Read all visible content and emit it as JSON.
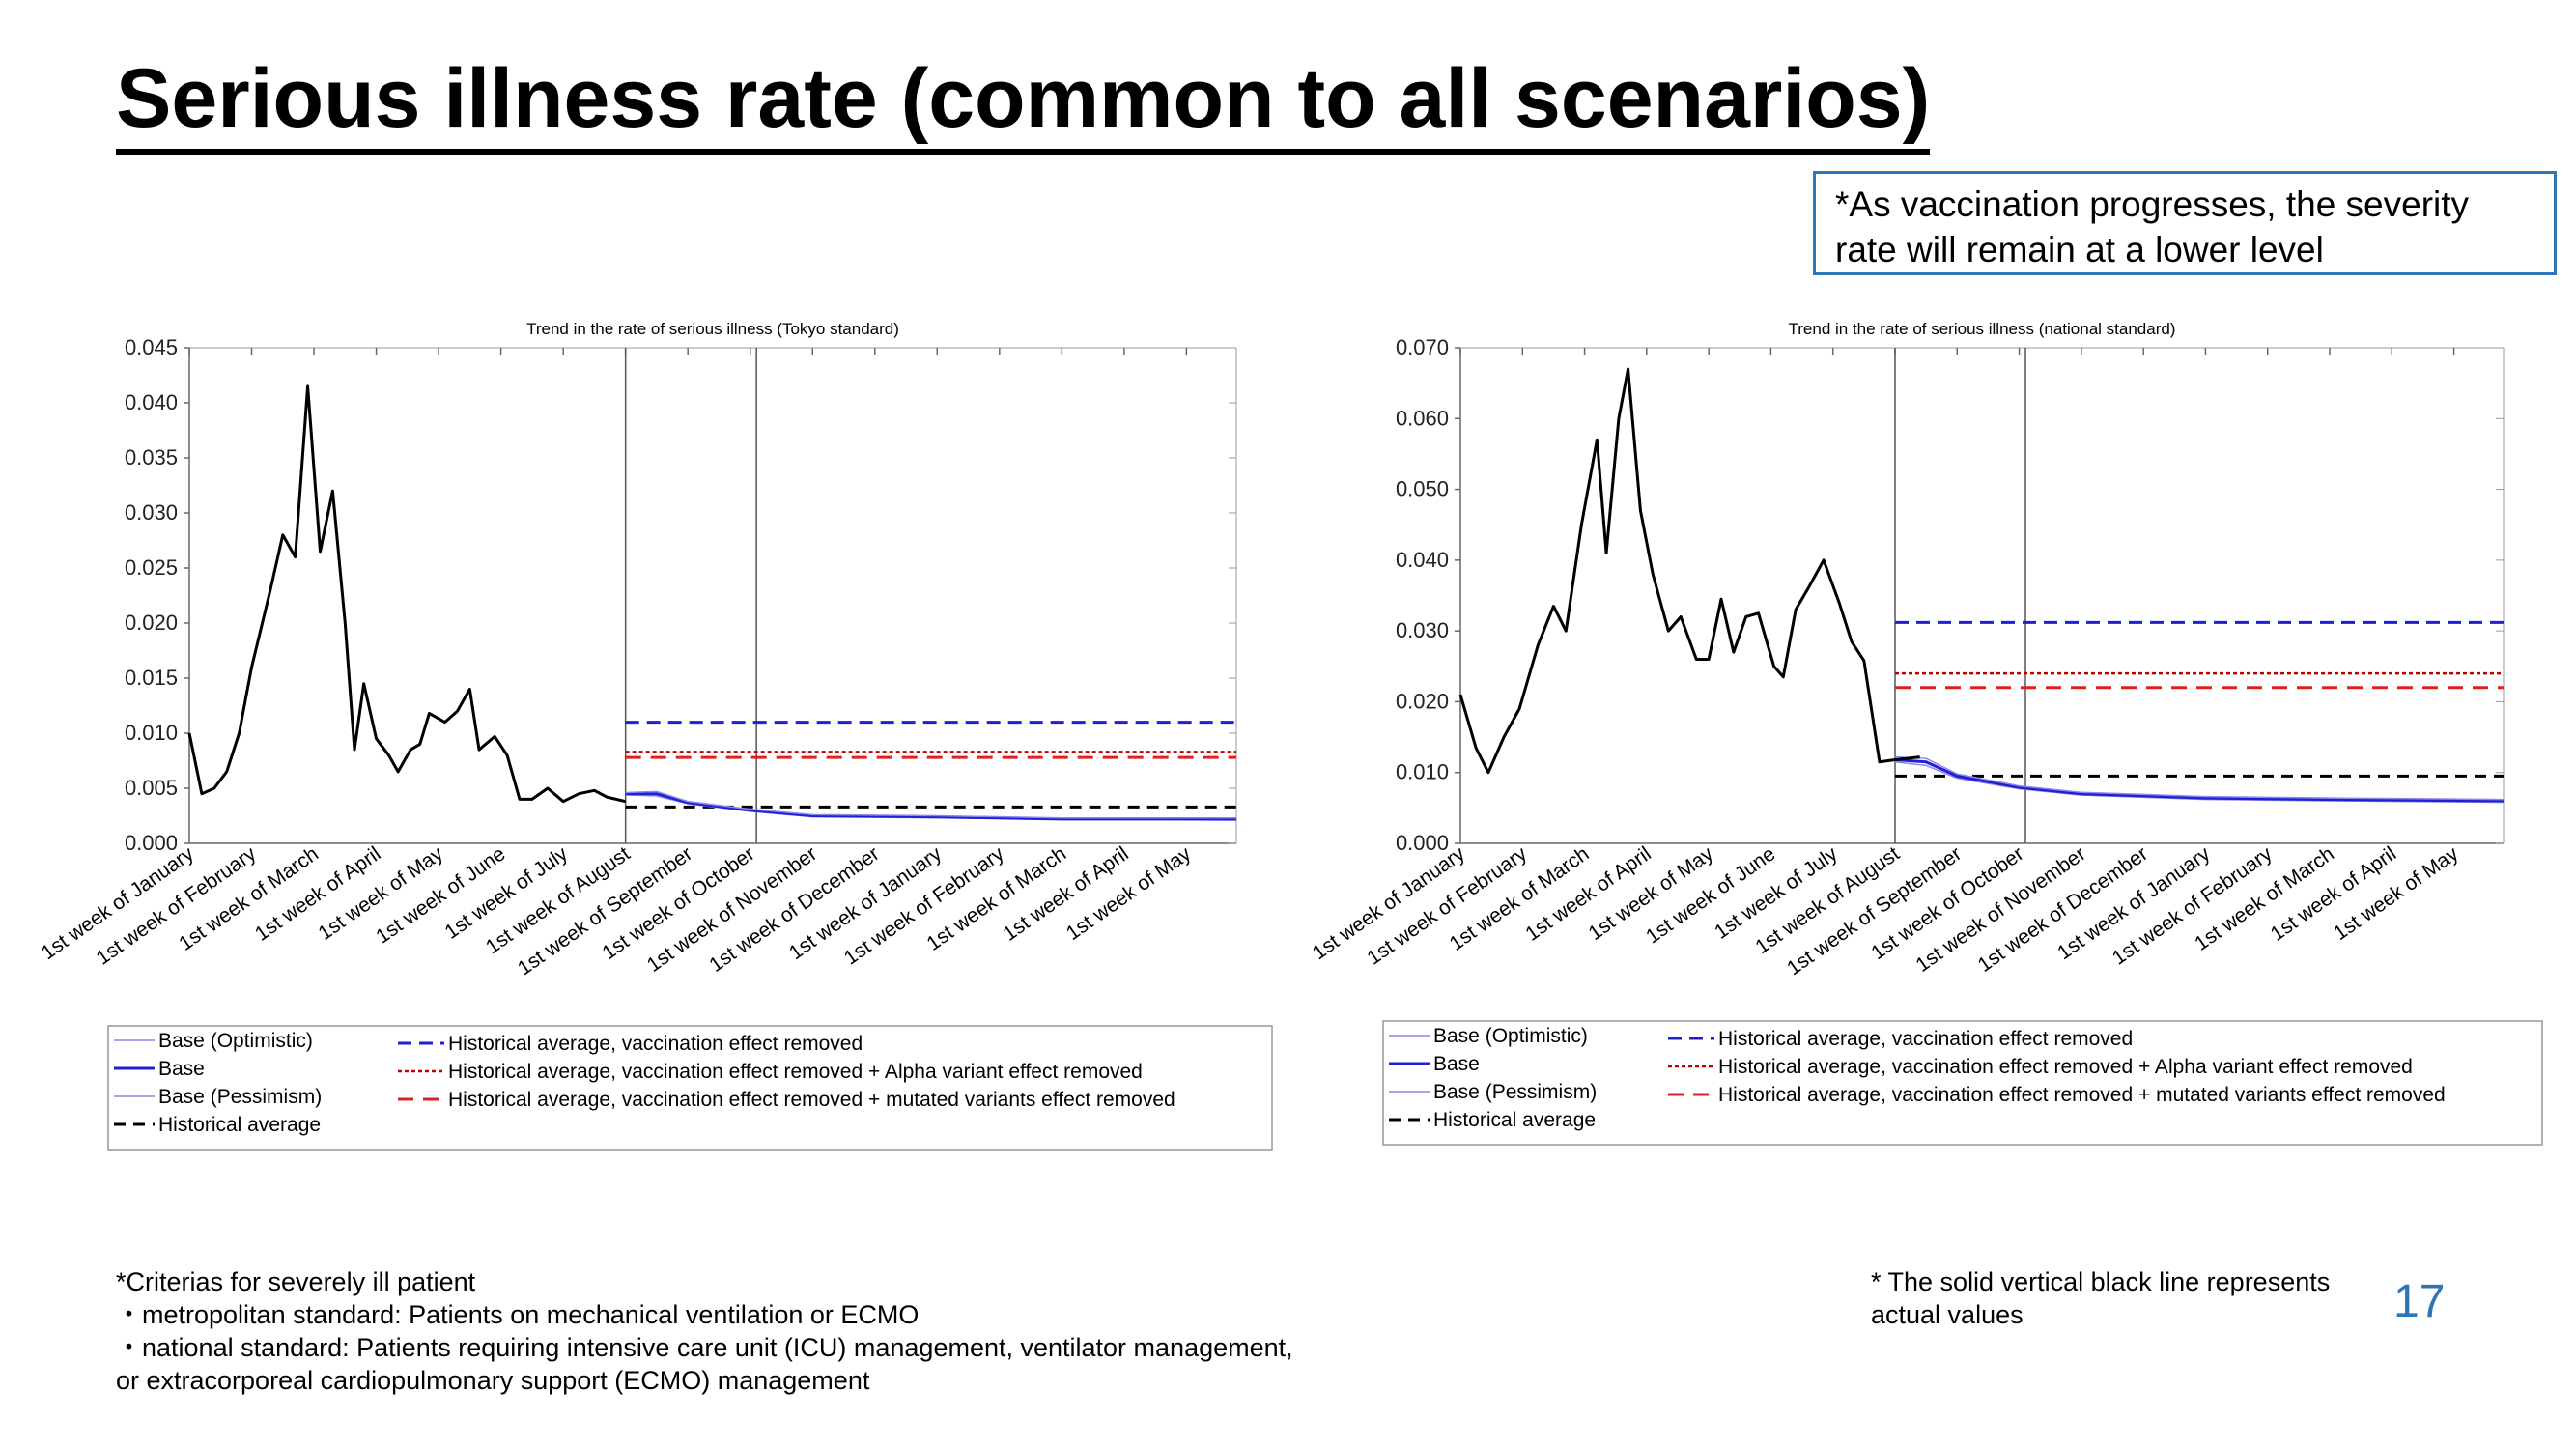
{
  "title": "Serious illness rate (common to all scenarios)",
  "note": "*As vaccination progresses, the severity rate will remain at a lower level",
  "criteria": {
    "heading": "*Criterias for severely ill patient",
    "line1": "・metropolitan standard: Patients on mechanical ventilation or ECMO",
    "line2": "・national standard: Patients requiring intensive care unit (ICU) management, ventilator management,",
    "line3": "or extracorporeal cardiopulmonary support (ECMO) management"
  },
  "footnote": "* The solid vertical black line represents actual values",
  "page_number": "17",
  "colors": {
    "actual": "#000000",
    "base": "#1f1fd6",
    "base_band": "#8a8ae8",
    "hist_vax": "#1f1fd6",
    "alpha": "#c00000",
    "mutated": "#e02020",
    "hist": "#000000",
    "accent": "#2e75b6"
  },
  "chart_data": [
    {
      "type": "line",
      "title": "Trend in the rate of serious illness (Tokyo standard)",
      "categories": [
        "1st week of January",
        "1st week of February",
        "1st week of March",
        "1st week of April",
        "1st week of May",
        "1st week of June",
        "1st week of July",
        "1st week of August",
        "1st week of September",
        "1st week of October",
        "1st week of November",
        "1st week of December",
        "1st week of January",
        "1st week of February",
        "1st week of March",
        "1st week of April",
        "1st week of May"
      ],
      "ylim": [
        0,
        0.045
      ],
      "yticks": [
        "0.000",
        "0.005",
        "0.010",
        "0.015",
        "0.020",
        "0.025",
        "0.030",
        "0.035",
        "0.040",
        "0.045"
      ],
      "vlines": [
        7.0,
        9.1
      ],
      "actual": {
        "x": [
          0,
          0.2,
          0.4,
          0.6,
          0.8,
          1.0,
          1.3,
          1.5,
          1.7,
          1.9,
          2.1,
          2.3,
          2.5,
          2.65,
          2.8,
          3.0,
          3.2,
          3.35,
          3.55,
          3.7,
          3.85,
          4.1,
          4.3,
          4.5,
          4.65,
          4.9,
          5.1,
          5.3,
          5.5,
          5.75,
          6.0,
          6.25,
          6.5,
          6.7,
          7.0
        ],
        "y": [
          0.01,
          0.0045,
          0.005,
          0.0065,
          0.01,
          0.016,
          0.023,
          0.028,
          0.026,
          0.0415,
          0.0265,
          0.032,
          0.02,
          0.0085,
          0.0145,
          0.0095,
          0.008,
          0.0065,
          0.0085,
          0.009,
          0.0118,
          0.011,
          0.012,
          0.014,
          0.0085,
          0.0097,
          0.008,
          0.004,
          0.004,
          0.005,
          0.0038,
          0.0045,
          0.0048,
          0.0042,
          0.0038
        ]
      },
      "series": [
        {
          "name": "Base (Optimistic)",
          "x": [
            7.0,
            7.5,
            8,
            9,
            10,
            12,
            14,
            16.8
          ],
          "y": [
            0.0044,
            0.0043,
            0.0036,
            0.0029,
            0.0024,
            0.0023,
            0.0022,
            0.0021
          ]
        },
        {
          "name": "Base",
          "x": [
            7.0,
            7.5,
            8,
            9,
            10,
            12,
            14,
            16.8
          ],
          "y": [
            0.0045,
            0.0045,
            0.0037,
            0.003,
            0.0025,
            0.0024,
            0.0022,
            0.0022
          ]
        },
        {
          "name": "Base (Pessimism)",
          "x": [
            7.0,
            7.5,
            8,
            9,
            10,
            12,
            14,
            16.8
          ],
          "y": [
            0.0046,
            0.0047,
            0.0038,
            0.0031,
            0.0026,
            0.0025,
            0.0023,
            0.0023
          ]
        },
        {
          "name": "Historical average",
          "value": 0.0033
        },
        {
          "name": "Historical average, vaccination effect removed",
          "value": 0.011
        },
        {
          "name": "Historical average, vaccination effect removed + Alpha variant effect removed",
          "value": 0.0083
        },
        {
          "name": "Historical average, vaccination effect removed + mutated variants effect removed",
          "value": 0.0078
        }
      ]
    },
    {
      "type": "line",
      "title": "Trend in the rate of serious illness (national standard)",
      "categories": [
        "1st week of January",
        "1st week of February",
        "1st week of March",
        "1st week of April",
        "1st week of May",
        "1st week of June",
        "1st week of July",
        "1st week of August",
        "1st week of September",
        "1st week of October",
        "1st week of November",
        "1st week of December",
        "1st week of January",
        "1st week of February",
        "1st week of March",
        "1st week of April",
        "1st week of May"
      ],
      "ylim": [
        0,
        0.07
      ],
      "yticks": [
        "0.000",
        "0.010",
        "0.020",
        "0.030",
        "0.040",
        "0.050",
        "0.060",
        "0.070"
      ],
      "vlines": [
        7.0,
        9.1
      ],
      "actual": {
        "x": [
          0,
          0.25,
          0.45,
          0.7,
          0.95,
          1.25,
          1.5,
          1.7,
          1.95,
          2.2,
          2.35,
          2.55,
          2.7,
          2.9,
          3.1,
          3.35,
          3.55,
          3.8,
          4.0,
          4.2,
          4.4,
          4.6,
          4.8,
          5.05,
          5.2,
          5.4,
          5.6,
          5.85,
          6.1,
          6.3,
          6.5,
          6.75,
          7.0,
          7.4
        ],
        "y": [
          0.021,
          0.0135,
          0.01,
          0.015,
          0.019,
          0.028,
          0.0335,
          0.03,
          0.045,
          0.057,
          0.041,
          0.06,
          0.067,
          0.047,
          0.038,
          0.03,
          0.032,
          0.026,
          0.026,
          0.0345,
          0.027,
          0.032,
          0.0325,
          0.025,
          0.0235,
          0.033,
          0.036,
          0.04,
          0.034,
          0.0285,
          0.0258,
          0.0115,
          0.0118,
          0.0122
        ]
      },
      "series": [
        {
          "name": "Base (Optimistic)",
          "x": [
            7.0,
            7.5,
            8,
            9,
            10,
            11,
            12,
            14,
            16.8
          ],
          "y": [
            0.0115,
            0.011,
            0.0092,
            0.0077,
            0.0068,
            0.0065,
            0.0062,
            0.006,
            0.0058
          ]
        },
        {
          "name": "Base",
          "x": [
            7.0,
            7.5,
            8,
            9,
            10,
            11,
            12,
            14,
            16.8
          ],
          "y": [
            0.0118,
            0.0115,
            0.0095,
            0.0079,
            0.007,
            0.0067,
            0.0064,
            0.0062,
            0.006
          ]
        },
        {
          "name": "Base (Pessimism)",
          "x": [
            7.0,
            7.5,
            8,
            9,
            10,
            11,
            12,
            14,
            16.8
          ],
          "y": [
            0.0122,
            0.012,
            0.0098,
            0.0081,
            0.0072,
            0.0069,
            0.0066,
            0.0064,
            0.0062
          ]
        },
        {
          "name": "Historical average",
          "value": 0.0095
        },
        {
          "name": "Historical average, vaccination effect removed",
          "value": 0.0312
        },
        {
          "name": "Historical average, vaccination effect removed + Alpha variant effect removed",
          "value": 0.024
        },
        {
          "name": "Historical average, vaccination effect removed + mutated variants effect removed",
          "value": 0.022
        }
      ]
    }
  ]
}
